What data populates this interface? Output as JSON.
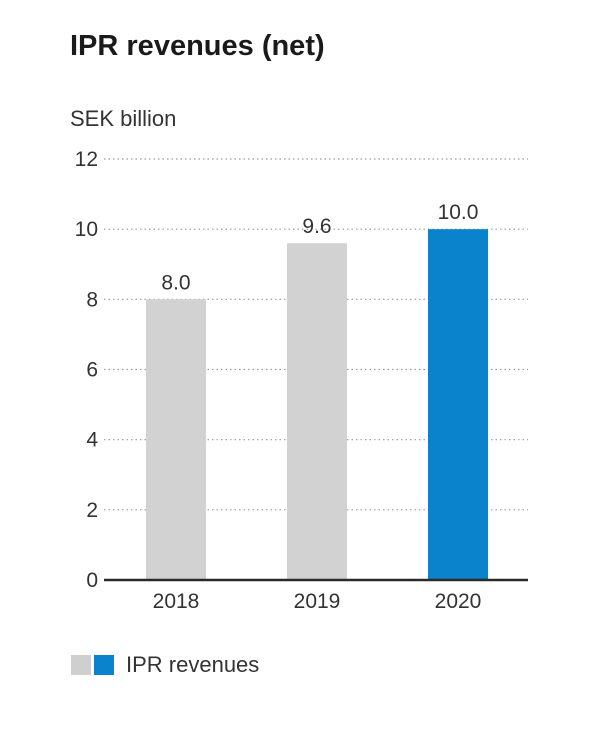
{
  "title": "IPR revenues (net)",
  "unit_label": "SEK billion",
  "chart_data": {
    "type": "bar",
    "categories": [
      "2018",
      "2019",
      "2020"
    ],
    "values": [
      8.0,
      9.6,
      10.0
    ],
    "value_labels": [
      "8.0",
      "9.6",
      "10.0"
    ],
    "bar_colors": [
      "#d2d2d2",
      "#d2d2d2",
      "#0a82cc"
    ],
    "ylim": [
      0,
      12
    ],
    "yticks": [
      0,
      2,
      4,
      6,
      8,
      10,
      12
    ],
    "grid": true,
    "legend": {
      "label": "IPR revenues",
      "colors": [
        "#cfcfcf",
        "#0a82cc"
      ],
      "placement": "bottom-left"
    }
  }
}
